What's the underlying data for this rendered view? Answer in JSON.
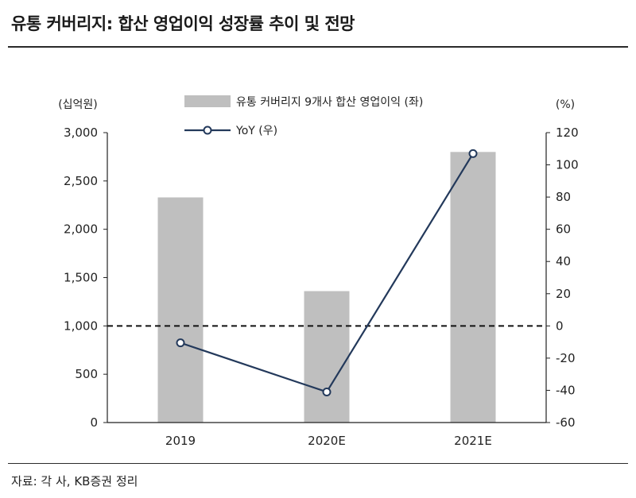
{
  "title": "유통 커버리지: 합산 영업이익 성장률 추이 및 전망",
  "source": "자료: 각 사, KB증권 정리",
  "colors": {
    "bar": "#bfbfbf",
    "line": "#23395b",
    "marker_fill": "#ffffff",
    "axis": "#222222"
  },
  "chart_data": {
    "type": "bar+line",
    "categories": [
      "2019",
      "2020E",
      "2021E"
    ],
    "series": [
      {
        "name": "유통 커버리지 9개사 합산 영업이익 (좌)",
        "type": "bar",
        "axis": "left",
        "values": [
          2330,
          1360,
          2800
        ]
      },
      {
        "name": "YoY (우)",
        "type": "line",
        "axis": "right",
        "values": [
          -10.5,
          -41,
          107
        ]
      }
    ],
    "left_axis": {
      "unit_label": "(십억원)",
      "range": [
        0,
        3000
      ],
      "ticks": [
        0,
        500,
        1000,
        1500,
        2000,
        2500,
        3000
      ],
      "tick_labels": [
        "0",
        "500",
        "1,000",
        "1,500",
        "2,000",
        "2,500",
        "3,000"
      ]
    },
    "right_axis": {
      "unit_label": "(%)",
      "range": [
        -60,
        120
      ],
      "ticks": [
        -60,
        -40,
        -20,
        0,
        20,
        40,
        60,
        80,
        100,
        120
      ],
      "tick_labels": [
        "-60",
        "-40",
        "-20",
        "0",
        "20",
        "40",
        "60",
        "80",
        "100",
        "120"
      ]
    },
    "reference_line": {
      "axis": "right",
      "value": 0,
      "style": "dashed"
    },
    "legend": {
      "position": "top"
    },
    "grid": false
  }
}
